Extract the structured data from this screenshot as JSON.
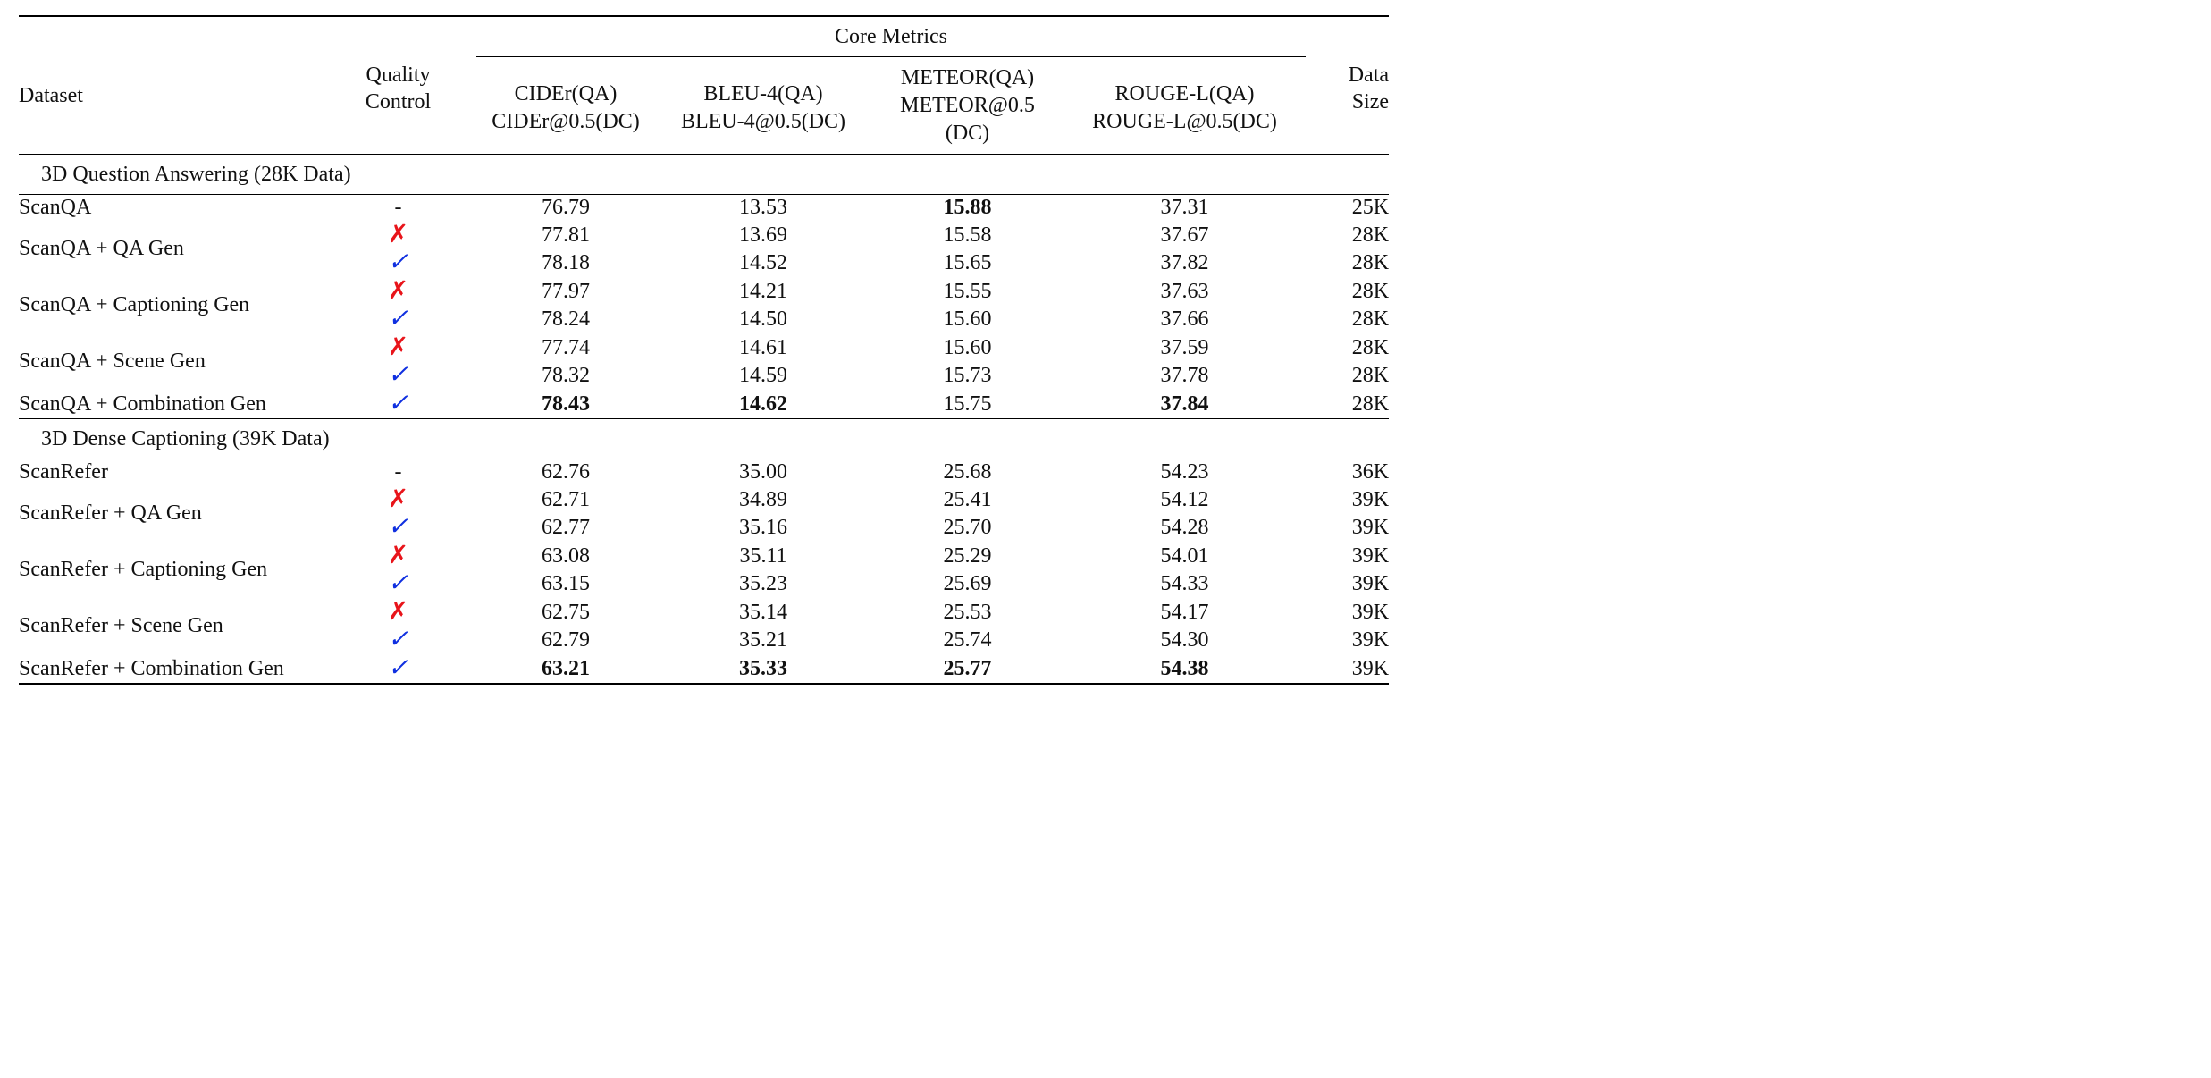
{
  "header": {
    "dataset": "Dataset",
    "quality_control": [
      "Quality",
      "Control"
    ],
    "core_metrics": "Core Metrics",
    "data_size": [
      "Data",
      "Size"
    ],
    "metrics": [
      [
        "CIDEr(QA)",
        "CIDEr@0.5(DC)"
      ],
      [
        "BLEU-4(QA)",
        "BLEU-4@0.5(DC)"
      ],
      [
        "METEOR(QA)",
        "METEOR@0.5",
        "(DC)"
      ],
      [
        "ROUGE-L(QA)",
        "ROUGE-L@0.5(DC)"
      ]
    ]
  },
  "marks": {
    "check": "✓",
    "cross": "✗",
    "none": "-"
  },
  "colors": {
    "cross": "#e8141a",
    "check": "#1030e0",
    "rule": "#000000"
  },
  "sections": [
    {
      "title": "3D Question Answering (28K Data)",
      "groups": [
        {
          "name": "ScanQA",
          "rows": [
            {
              "qc": "-",
              "vals": [
                "76.79",
                "13.53",
                "15.88",
                "37.31"
              ],
              "bold": [
                false,
                false,
                true,
                false
              ],
              "size": "25K"
            }
          ]
        },
        {
          "name": "ScanQA + QA Gen",
          "rows": [
            {
              "qc": "✗",
              "vals": [
                "77.81",
                "13.69",
                "15.58",
                "37.67"
              ],
              "bold": [
                false,
                false,
                false,
                false
              ],
              "size": "28K"
            },
            {
              "qc": "✓",
              "vals": [
                "78.18",
                "14.52",
                "15.65",
                "37.82"
              ],
              "bold": [
                false,
                false,
                false,
                false
              ],
              "size": "28K"
            }
          ]
        },
        {
          "name": "ScanQA + Captioning Gen",
          "rows": [
            {
              "qc": "✗",
              "vals": [
                "77.97",
                "14.21",
                "15.55",
                "37.63"
              ],
              "bold": [
                false,
                false,
                false,
                false
              ],
              "size": "28K"
            },
            {
              "qc": "✓",
              "vals": [
                "78.24",
                "14.50",
                "15.60",
                "37.66"
              ],
              "bold": [
                false,
                false,
                false,
                false
              ],
              "size": "28K"
            }
          ]
        },
        {
          "name": "ScanQA + Scene Gen",
          "rows": [
            {
              "qc": "✗",
              "vals": [
                "77.74",
                "14.61",
                "15.60",
                "37.59"
              ],
              "bold": [
                false,
                false,
                false,
                false
              ],
              "size": "28K"
            },
            {
              "qc": "✓",
              "vals": [
                "78.32",
                "14.59",
                "15.73",
                "37.78"
              ],
              "bold": [
                false,
                false,
                false,
                false
              ],
              "size": "28K"
            }
          ]
        },
        {
          "name": "ScanQA + Combination Gen",
          "rows": [
            {
              "qc": "✓",
              "vals": [
                "78.43",
                "14.62",
                "15.75",
                "37.84"
              ],
              "bold": [
                true,
                true,
                false,
                true
              ],
              "size": "28K"
            }
          ]
        }
      ]
    },
    {
      "title": "3D Dense Captioning (39K Data)",
      "groups": [
        {
          "name": "ScanRefer",
          "rows": [
            {
              "qc": "-",
              "vals": [
                "62.76",
                "35.00",
                "25.68",
                "54.23"
              ],
              "bold": [
                false,
                false,
                false,
                false
              ],
              "size": "36K"
            }
          ]
        },
        {
          "name": "ScanRefer + QA Gen",
          "rows": [
            {
              "qc": "✗",
              "vals": [
                "62.71",
                "34.89",
                "25.41",
                "54.12"
              ],
              "bold": [
                false,
                false,
                false,
                false
              ],
              "size": "39K"
            },
            {
              "qc": "✓",
              "vals": [
                "62.77",
                "35.16",
                "25.70",
                "54.28"
              ],
              "bold": [
                false,
                false,
                false,
                false
              ],
              "size": "39K"
            }
          ]
        },
        {
          "name": "ScanRefer + Captioning Gen",
          "rows": [
            {
              "qc": "✗",
              "vals": [
                "63.08",
                "35.11",
                "25.29",
                "54.01"
              ],
              "bold": [
                false,
                false,
                false,
                false
              ],
              "size": "39K"
            },
            {
              "qc": "✓",
              "vals": [
                "63.15",
                "35.23",
                "25.69",
                "54.33"
              ],
              "bold": [
                false,
                false,
                false,
                false
              ],
              "size": "39K"
            }
          ]
        },
        {
          "name": "ScanRefer + Scene Gen",
          "rows": [
            {
              "qc": "✗",
              "vals": [
                "62.75",
                "35.14",
                "25.53",
                "54.17"
              ],
              "bold": [
                false,
                false,
                false,
                false
              ],
              "size": "39K"
            },
            {
              "qc": "✓",
              "vals": [
                "62.79",
                "35.21",
                "25.74",
                "54.30"
              ],
              "bold": [
                false,
                false,
                false,
                false
              ],
              "size": "39K"
            }
          ]
        },
        {
          "name": "ScanRefer + Combination Gen",
          "rows": [
            {
              "qc": "✓",
              "vals": [
                "63.21",
                "35.33",
                "25.77",
                "54.38"
              ],
              "bold": [
                true,
                true,
                true,
                true
              ],
              "size": "39K"
            }
          ]
        }
      ]
    }
  ]
}
